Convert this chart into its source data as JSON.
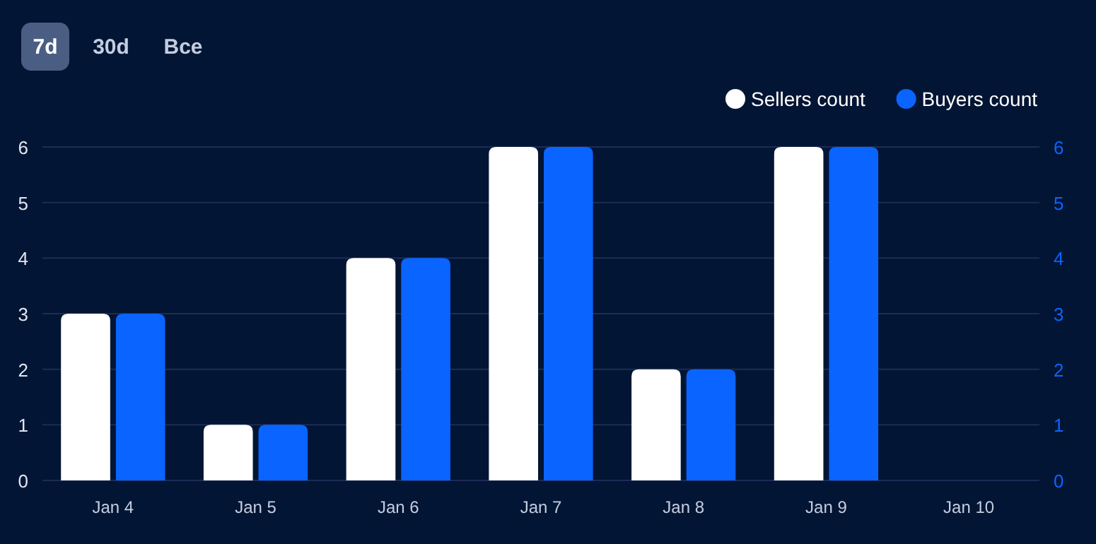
{
  "chart_data": {
    "type": "bar",
    "categories": [
      "Jan 4",
      "Jan 5",
      "Jan 6",
      "Jan 7",
      "Jan 8",
      "Jan 9",
      "Jan 10"
    ],
    "series": [
      {
        "name": "Sellers count",
        "color": "#ffffff",
        "values": [
          3,
          1,
          4,
          6,
          2,
          6,
          null
        ]
      },
      {
        "name": "Buyers count",
        "color": "#0a64ff",
        "values": [
          3,
          1,
          4,
          6,
          2,
          6,
          null
        ],
        "axis": "y2"
      }
    ],
    "ylim": [
      0,
      6
    ],
    "yticks": [
      0,
      1,
      2,
      3,
      4,
      5,
      6
    ],
    "y2lim": [
      0,
      6
    ],
    "y2ticks": [
      0,
      1,
      2,
      3,
      4,
      5,
      6
    ],
    "grid": "y",
    "legend": "top right",
    "annotations": [
      "7d",
      "30d",
      "Все"
    ]
  }
}
